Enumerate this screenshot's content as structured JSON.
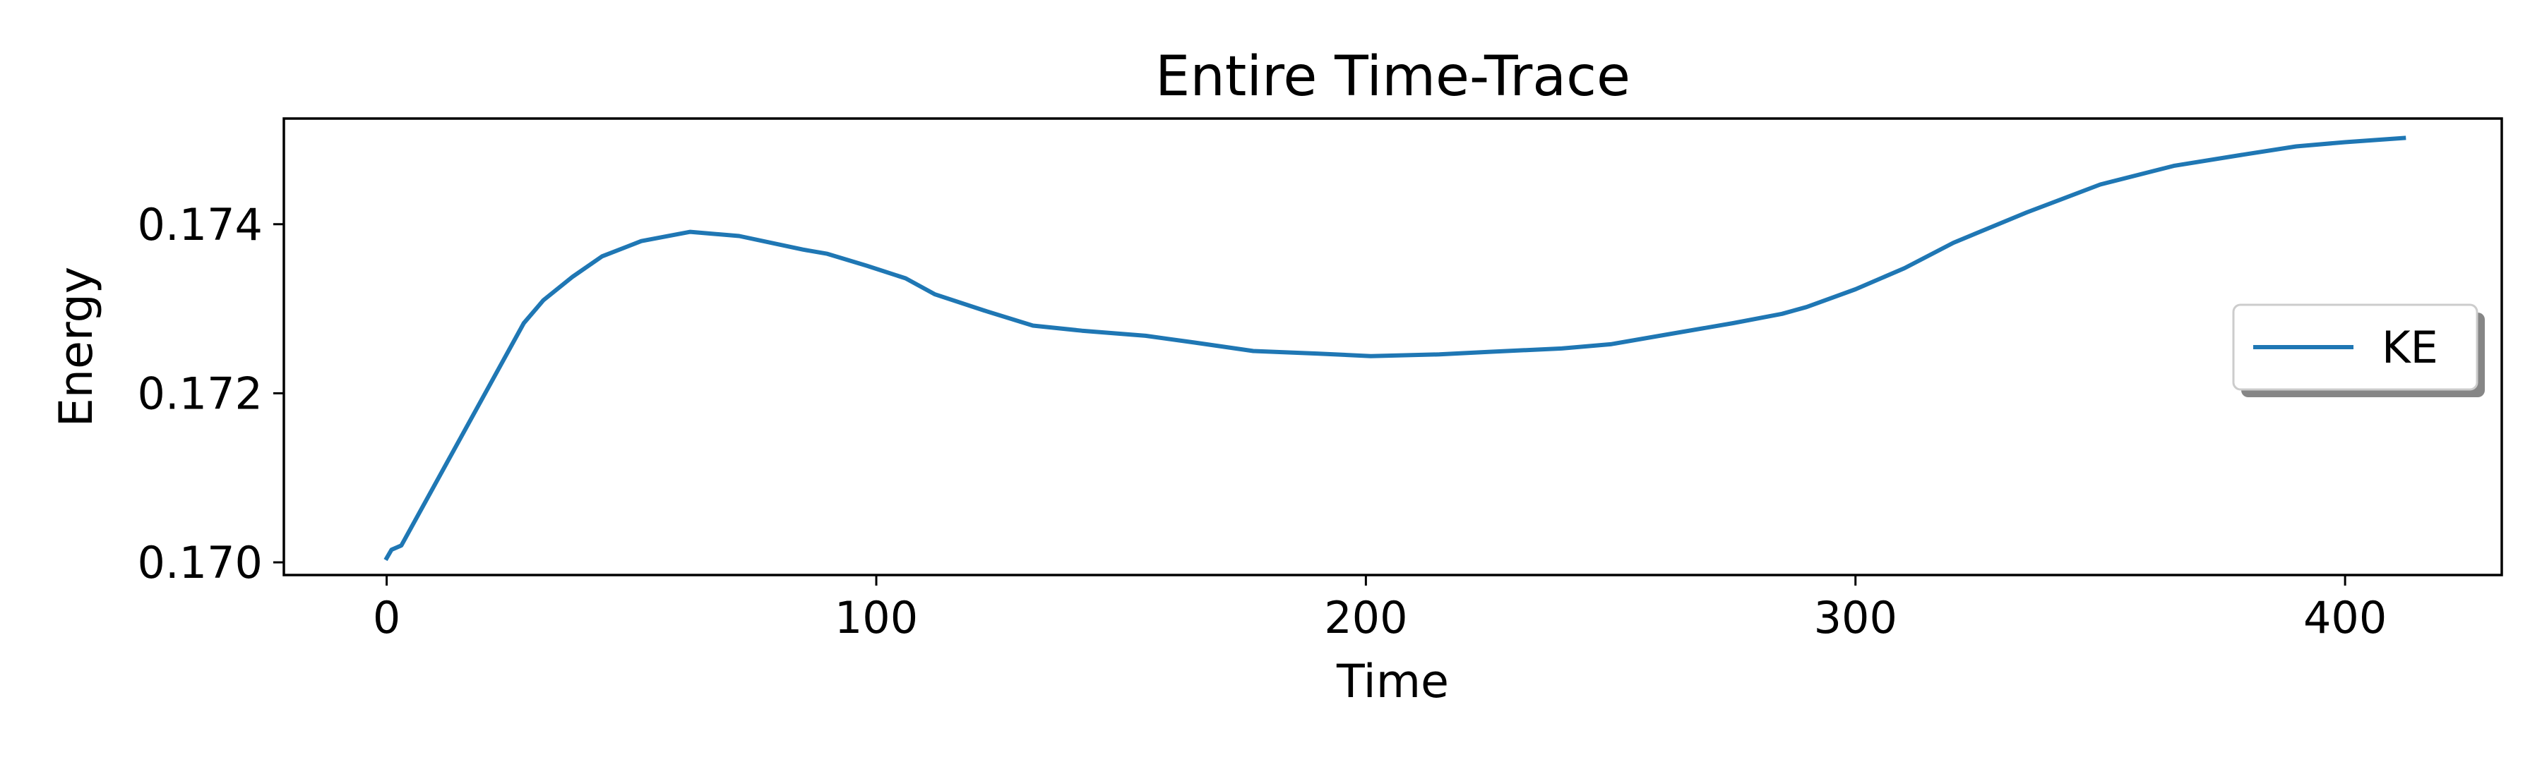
{
  "chart_data": {
    "type": "line",
    "title": "Entire Time-Trace",
    "xlabel": "Time",
    "ylabel": "Energy",
    "xlim": [
      -21,
      432
    ],
    "ylim": [
      0.16985,
      0.17525
    ],
    "xticks": [
      0,
      100,
      200,
      300,
      400
    ],
    "yticks": [
      0.17,
      0.172,
      0.174
    ],
    "xtick_labels": [
      "0",
      "100",
      "200",
      "300",
      "400"
    ],
    "ytick_labels": [
      "0.170",
      "0.172",
      "0.174"
    ],
    "grid": false,
    "legend": {
      "position": "center-right",
      "shadow": true
    },
    "series": [
      {
        "name": "KE",
        "color": "#1f77b4",
        "x": [
          0,
          1,
          3,
          28,
          32,
          38,
          44,
          52,
          62,
          72,
          85,
          90,
          98,
          106,
          112,
          122,
          132,
          142,
          155,
          165,
          177,
          190,
          201,
          215,
          225,
          240,
          250,
          262,
          275,
          285,
          290,
          300,
          310,
          320,
          335,
          350,
          365,
          380,
          390,
          400,
          412
        ],
        "y": [
          0.17005,
          0.17015,
          0.1702,
          0.17283,
          0.1731,
          0.17338,
          0.17362,
          0.1738,
          0.17391,
          0.17386,
          0.1737,
          0.17365,
          0.17351,
          0.17336,
          0.17317,
          0.17298,
          0.1728,
          0.17274,
          0.17268,
          0.1726,
          0.1725,
          0.17247,
          0.17244,
          0.17246,
          0.17249,
          0.17253,
          0.17258,
          0.1727,
          0.17283,
          0.17294,
          0.17302,
          0.17323,
          0.17348,
          0.17378,
          0.17414,
          0.17447,
          0.17469,
          0.17483,
          0.17492,
          0.17497,
          0.17502
        ]
      }
    ]
  }
}
